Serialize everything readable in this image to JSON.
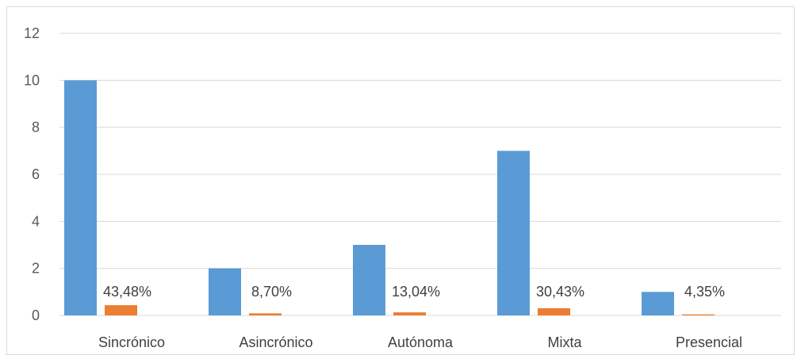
{
  "chart_data": {
    "type": "bar",
    "categories": [
      "Sincrónico",
      "Asincrónico",
      "Autónoma",
      "Mixta",
      "Presencial"
    ],
    "series": [
      {
        "values": [
          10,
          2,
          3,
          7,
          1
        ],
        "color": "#5b9bd5"
      },
      {
        "values": [
          0.4348,
          0.087,
          0.1304,
          0.3043,
          0.0435
        ],
        "color": "#ed7d31",
        "data_labels": [
          "43,48%",
          "8,70%",
          "13,04%",
          "30,43%",
          "4,35%"
        ]
      }
    ],
    "y_ticks": [
      "0",
      "2",
      "4",
      "6",
      "8",
      "10",
      "12"
    ],
    "ylim": [
      0,
      12
    ],
    "grid": true,
    "gridline_color": "#d9d9d9",
    "title": "",
    "xlabel": "",
    "ylabel": ""
  }
}
